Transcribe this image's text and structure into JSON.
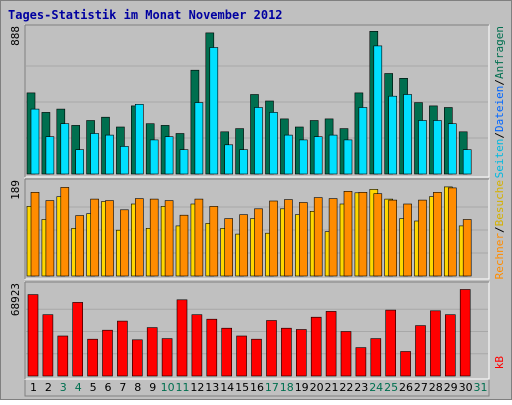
{
  "title": "Tages-Statistik im Monat November 2012",
  "colors": {
    "background": "#c0c0c0",
    "title": "#0000a0",
    "anfragen": "#006f4f",
    "dateien": "#00e0ff",
    "seiten": "#00d0ff",
    "besuche": "#ffd700",
    "rechner": "#ff8c00",
    "kb": "#ff0000",
    "weekend_label": "#006f4f",
    "weekday_label": "#000000"
  },
  "legend": {
    "anfragen": "Anfragen",
    "dateien": "Dateien",
    "seiten": "Seiten",
    "besuche": "Besuche",
    "rechner": "Rechner",
    "kb": "kB",
    "sep": "/"
  },
  "chart_data": {
    "type": "bar",
    "x_label_style": {
      "weekend_days": [
        3,
        4,
        10,
        11,
        17,
        18,
        24,
        25,
        31
      ]
    },
    "categories": [
      "1",
      "2",
      "3",
      "4",
      "5",
      "6",
      "7",
      "8",
      "9",
      "10",
      "11",
      "12",
      "13",
      "14",
      "15",
      "16",
      "17",
      "18",
      "19",
      "20",
      "21",
      "22",
      "23",
      "24",
      "25",
      "26",
      "27",
      "28",
      "29",
      "30",
      "31"
    ],
    "panels": [
      {
        "name": "top",
        "ymax_label": "888",
        "ymax": 888,
        "series": [
          {
            "name": "Anfragen",
            "color": "#006f4f",
            "values": [
              500,
              380,
              400,
              300,
              330,
              350,
              290,
              420,
              310,
              300,
              250,
              640,
              870,
              260,
              280,
              490,
              450,
              340,
              290,
              330,
              340,
              280,
              500,
              880,
              620,
              590,
              440,
              420,
              410,
              260,
              0
            ]
          },
          {
            "name": "Dateien",
            "color": "#00e0ff",
            "values": [
              400,
              230,
              310,
              150,
              250,
              240,
              170,
              430,
              210,
              230,
              150,
              440,
              780,
              180,
              150,
              410,
              380,
              240,
              210,
              230,
              240,
              210,
              410,
              790,
              480,
              490,
              330,
              330,
              310,
              150,
              0
            ]
          }
        ]
      },
      {
        "name": "middle",
        "ymax_label": "189",
        "ymax": 189,
        "series": [
          {
            "name": "Besuche",
            "color": "#ffd700",
            "values": [
              143,
              116,
              163,
              98,
              128,
              153,
              94,
              148,
              98,
              143,
              103,
              148,
              108,
              98,
              86,
              118,
              88,
              138,
              126,
              133,
              91,
              148,
              171,
              178,
              158,
              118,
              113,
              163,
              183,
              103,
              0
            ]
          },
          {
            "name": "Rechner",
            "color": "#ff8c00",
            "values": [
              172,
              155,
              182,
              124,
              158,
              155,
              136,
              159,
              158,
              155,
              125,
              158,
              143,
              118,
              126,
              138,
              154,
              157,
              151,
              161,
              159,
              174,
              172,
              169,
              156,
              148,
              156,
              172,
              181,
              116,
              0
            ]
          }
        ]
      },
      {
        "name": "bottom",
        "ymax_label": "68923",
        "ymax": 68923,
        "series": [
          {
            "name": "kB",
            "color": "#ff0000",
            "values": [
              63000,
              47500,
              31000,
              57000,
              28500,
              35500,
              42500,
              28000,
              37500,
              29000,
              59000,
              47500,
              44000,
              37000,
              31000,
              28500,
              43000,
              37000,
              36000,
              45500,
              50000,
              34500,
              22000,
              29000,
              51000,
              19000,
              39000,
              50500,
              47500,
              67000,
              0
            ]
          }
        ]
      }
    ]
  }
}
